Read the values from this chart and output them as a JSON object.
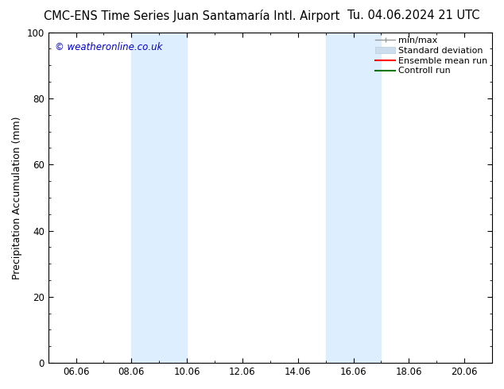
{
  "title_left": "CMC-ENS Time Series Juan Santamaría Intl. Airport",
  "title_right": "Tu. 04.06.2024 21 UTC",
  "ylabel": "Precipitation Accumulation (mm)",
  "watermark": "© weatheronline.co.uk",
  "watermark_color": "#0000cc",
  "ylim": [
    0,
    100
  ],
  "yticks": [
    0,
    20,
    40,
    60,
    80,
    100
  ],
  "xtick_positions": [
    6,
    8,
    10,
    12,
    14,
    16,
    18,
    20
  ],
  "xtick_labels": [
    "06.06",
    "08.06",
    "10.06",
    "12.06",
    "14.06",
    "16.06",
    "18.06",
    "20.06"
  ],
  "xlim": [
    5.0,
    21.0
  ],
  "shaded_regions": [
    {
      "xmin": 8.0,
      "xmax": 10.0
    },
    {
      "xmin": 15.0,
      "xmax": 17.0
    }
  ],
  "shade_color": "#ddeeff",
  "background_color": "#ffffff",
  "legend_entries": [
    {
      "label": "min/max",
      "color": "#aaaaaa"
    },
    {
      "label": "Standard deviation",
      "color": "#ccddee"
    },
    {
      "label": "Ensemble mean run",
      "color": "#ff0000"
    },
    {
      "label": "Controll run",
      "color": "#007700"
    }
  ],
  "title_fontsize": 10.5,
  "tick_fontsize": 8.5,
  "label_fontsize": 9,
  "legend_fontsize": 8
}
